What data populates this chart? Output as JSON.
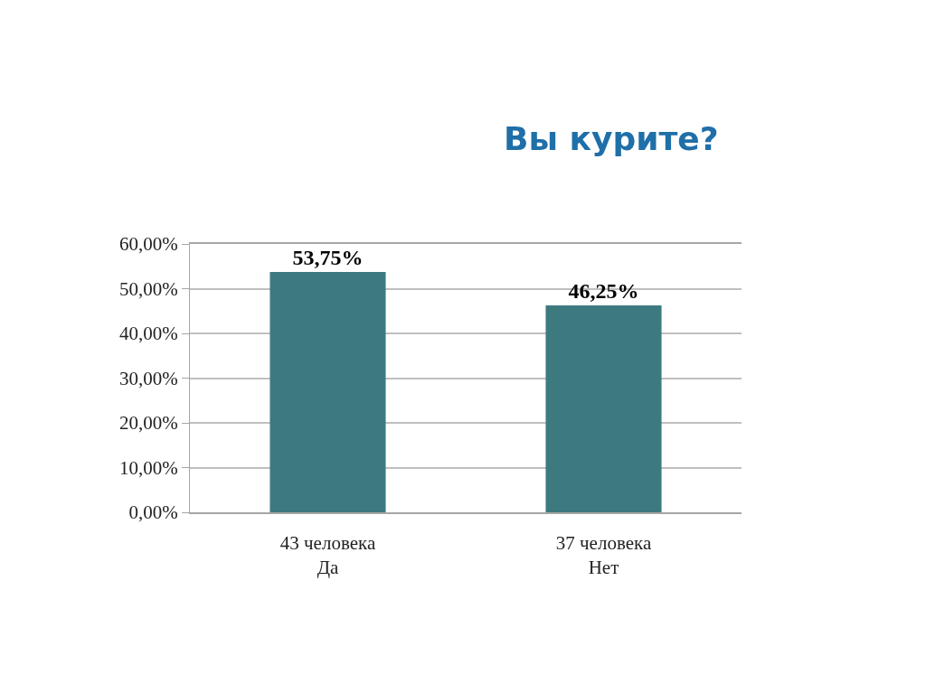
{
  "chart_data": {
    "type": "bar",
    "title": "Вы курите?",
    "categories": [
      "43 человека\nДа",
      "37 человека\nНет"
    ],
    "values": [
      53.75,
      46.25
    ],
    "value_labels": [
      "53,75%",
      "46,25%"
    ],
    "color": "#3d7a80",
    "ylim": [
      0,
      60
    ],
    "yticks": [
      {
        "value": 0,
        "label": "0,00%"
      },
      {
        "value": 10,
        "label": "10,00%"
      },
      {
        "value": 20,
        "label": "20,00%"
      },
      {
        "value": 30,
        "label": "30,00%"
      },
      {
        "value": 40,
        "label": "40,00%"
      },
      {
        "value": 50,
        "label": "50,00%"
      },
      {
        "value": 60,
        "label": "60,00%"
      }
    ],
    "grid": "y"
  }
}
